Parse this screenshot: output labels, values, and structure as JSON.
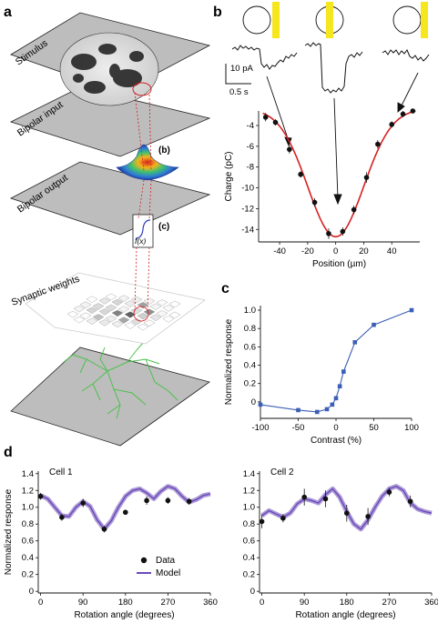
{
  "panels": {
    "a": "a",
    "b": "b",
    "c": "c",
    "d": "d"
  },
  "panel_a": {
    "layers": [
      "Stimulus",
      "Bipolar input",
      "Bipolar output",
      "Synaptic weights"
    ],
    "inset_b": "(b)",
    "inset_c": "(c)",
    "nonlinearity": "f(x)"
  },
  "panel_b": {
    "scale_pa": "10 pA",
    "scale_s": "0.5 s"
  },
  "colors": {
    "fit_red": "#d62020",
    "blue": "#3b5fb5",
    "model_purple": "#6a48b8",
    "bar_yellow": "#f5e61e",
    "plane_gray": "#b8b8b8",
    "dendrite_green": "#4cc04c"
  },
  "chart_data": [
    {
      "id": "b",
      "type": "scatter",
      "xlabel": "Position (µm)",
      "ylabel": "Charge (pC)",
      "xlim": [
        -55,
        60
      ],
      "ylim": [
        -15.2,
        -2.6
      ],
      "xticks": [
        -40,
        -20,
        0,
        20,
        40
      ],
      "yticks": [
        -4,
        -6,
        -8,
        -10,
        -12,
        -14
      ],
      "points": [
        {
          "x": -50,
          "y": -3.2,
          "err": 0.4
        },
        {
          "x": -43,
          "y": -3.7,
          "err": 0.3
        },
        {
          "x": -33,
          "y": -6.3,
          "err": 0.4
        },
        {
          "x": -25,
          "y": -8.7,
          "err": 0.3
        },
        {
          "x": -15,
          "y": -11.4,
          "err": 0.4
        },
        {
          "x": -5,
          "y": -14.4,
          "err": 0.5
        },
        {
          "x": 5,
          "y": -14.2,
          "err": 0.4
        },
        {
          "x": 13,
          "y": -12.1,
          "err": 0.4
        },
        {
          "x": 22,
          "y": -9.0,
          "err": 0.5
        },
        {
          "x": 30,
          "y": -5.8,
          "err": 0.4
        },
        {
          "x": 40,
          "y": -3.9,
          "err": 0.3
        },
        {
          "x": 48,
          "y": -2.9,
          "err": 0.3
        },
        {
          "x": 55,
          "y": -2.6,
          "err": 0.2
        }
      ],
      "fit": {
        "type": "gaussian",
        "baseline": -2.4,
        "amplitude": 12.3,
        "center": 0,
        "sigma": 20
      }
    },
    {
      "id": "c",
      "type": "line",
      "xlabel": "Contrast (%)",
      "ylabel": "Normalized response",
      "xlim": [
        -100,
        100
      ],
      "ylim": [
        -0.18,
        1.05
      ],
      "xticks": [
        -100,
        -50,
        0,
        50,
        100
      ],
      "yticks": [
        0,
        0.2,
        0.4,
        0.6,
        0.8,
        1.0
      ],
      "points": [
        {
          "x": -100,
          "y": -0.03
        },
        {
          "x": -50,
          "y": -0.09
        },
        {
          "x": -25,
          "y": -0.11
        },
        {
          "x": -12,
          "y": -0.08
        },
        {
          "x": -5,
          "y": -0.03
        },
        {
          "x": 0,
          "y": 0.04
        },
        {
          "x": 5,
          "y": 0.17
        },
        {
          "x": 10,
          "y": 0.33
        },
        {
          "x": 25,
          "y": 0.65
        },
        {
          "x": 50,
          "y": 0.84
        },
        {
          "x": 100,
          "y": 1.0
        }
      ]
    },
    {
      "id": "d1",
      "type": "line",
      "title": "Cell 1",
      "xlabel": "Rotation angle (degrees)",
      "ylabel": "Normalized response",
      "xlim": [
        -5,
        360
      ],
      "ylim": [
        -0.02,
        1.43
      ],
      "xticks": [
        0,
        90,
        180,
        270,
        360
      ],
      "yticks": [
        0,
        0.2,
        0.4,
        0.6,
        0.8,
        1.0,
        1.2,
        1.4
      ],
      "data": [
        {
          "x": 0,
          "y": 1.13,
          "err": 0.04
        },
        {
          "x": 45,
          "y": 0.88,
          "err": 0.04
        },
        {
          "x": 90,
          "y": 1.05,
          "err": 0.05
        },
        {
          "x": 135,
          "y": 0.74,
          "err": 0.04
        },
        {
          "x": 180,
          "y": 0.94,
          "err": 0.03
        },
        {
          "x": 225,
          "y": 1.08,
          "err": 0.05
        },
        {
          "x": 270,
          "y": 1.08,
          "err": 0.04
        },
        {
          "x": 315,
          "y": 1.07,
          "err": 0.04
        }
      ],
      "model": [
        [
          0,
          1.14
        ],
        [
          15,
          1.1
        ],
        [
          30,
          1.0
        ],
        [
          45,
          0.9
        ],
        [
          60,
          0.89
        ],
        [
          75,
          1.0
        ],
        [
          90,
          1.07
        ],
        [
          105,
          1.01
        ],
        [
          120,
          0.85
        ],
        [
          135,
          0.74
        ],
        [
          150,
          0.84
        ],
        [
          165,
          1.0
        ],
        [
          180,
          1.13
        ],
        [
          195,
          1.2
        ],
        [
          210,
          1.22
        ],
        [
          225,
          1.17
        ],
        [
          240,
          1.1
        ],
        [
          255,
          1.19
        ],
        [
          270,
          1.25
        ],
        [
          285,
          1.22
        ],
        [
          300,
          1.13
        ],
        [
          315,
          1.06
        ],
        [
          330,
          1.09
        ],
        [
          345,
          1.14
        ],
        [
          360,
          1.16
        ]
      ]
    },
    {
      "id": "d2",
      "type": "line",
      "title": "Cell 2",
      "xlabel": "Rotation angle (degrees)",
      "ylabel": "",
      "xlim": [
        -5,
        360
      ],
      "ylim": [
        -0.02,
        1.43
      ],
      "xticks": [
        0,
        90,
        180,
        270,
        360
      ],
      "yticks": [
        0,
        0.2,
        0.4,
        0.6,
        0.8,
        1.0,
        1.2,
        1.4
      ],
      "data": [
        {
          "x": 0,
          "y": 0.83,
          "err": 0.08
        },
        {
          "x": 45,
          "y": 0.87,
          "err": 0.05
        },
        {
          "x": 90,
          "y": 1.12,
          "err": 0.1
        },
        {
          "x": 135,
          "y": 1.1,
          "err": 0.1
        },
        {
          "x": 180,
          "y": 0.93,
          "err": 0.1
        },
        {
          "x": 225,
          "y": 0.89,
          "err": 0.1
        },
        {
          "x": 270,
          "y": 1.18,
          "err": 0.05
        },
        {
          "x": 315,
          "y": 1.07,
          "err": 0.07
        }
      ],
      "model": [
        [
          0,
          0.9
        ],
        [
          15,
          0.96
        ],
        [
          30,
          0.92
        ],
        [
          45,
          0.88
        ],
        [
          60,
          0.93
        ],
        [
          75,
          1.04
        ],
        [
          90,
          1.1
        ],
        [
          105,
          1.08
        ],
        [
          120,
          1.05
        ],
        [
          135,
          1.15
        ],
        [
          150,
          1.22
        ],
        [
          165,
          1.12
        ],
        [
          180,
          0.95
        ],
        [
          195,
          0.8
        ],
        [
          210,
          0.74
        ],
        [
          225,
          0.85
        ],
        [
          240,
          1.0
        ],
        [
          255,
          1.13
        ],
        [
          270,
          1.22
        ],
        [
          285,
          1.25
        ],
        [
          300,
          1.2
        ],
        [
          315,
          1.05
        ],
        [
          330,
          0.98
        ],
        [
          345,
          0.95
        ],
        [
          360,
          0.93
        ]
      ],
      "legend": [
        {
          "name": "Data",
          "marker": "dot"
        },
        {
          "name": "Model",
          "marker": "line"
        }
      ]
    }
  ]
}
